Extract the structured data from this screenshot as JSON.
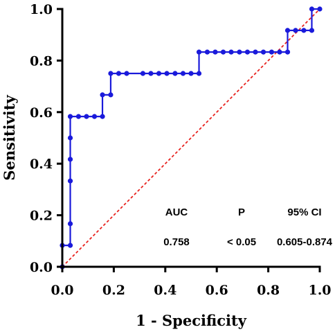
{
  "chart_data": {
    "type": "line",
    "xlabel": "1 - Specificity",
    "ylabel": "Sensitivity",
    "xlim": [
      0,
      1
    ],
    "ylim": [
      0,
      1
    ],
    "x_ticks": [
      "0.0",
      "0.2",
      "0.4",
      "0.6",
      "0.8",
      "1.0"
    ],
    "y_ticks": [
      "0.0",
      "0.2",
      "0.4",
      "0.6",
      "0.8",
      "1.0"
    ],
    "grid": false,
    "series": [
      {
        "color": "#1a1adb",
        "style": "step-with-markers",
        "points": [
          [
            0.0,
            0.0
          ],
          [
            0.0,
            0.083
          ],
          [
            0.031,
            0.083
          ],
          [
            0.031,
            0.167
          ],
          [
            0.031,
            0.333
          ],
          [
            0.031,
            0.417
          ],
          [
            0.031,
            0.5
          ],
          [
            0.031,
            0.583
          ],
          [
            0.063,
            0.583
          ],
          [
            0.094,
            0.583
          ],
          [
            0.125,
            0.583
          ],
          [
            0.156,
            0.583
          ],
          [
            0.156,
            0.667
          ],
          [
            0.188,
            0.667
          ],
          [
            0.188,
            0.75
          ],
          [
            0.219,
            0.75
          ],
          [
            0.25,
            0.75
          ],
          [
            0.313,
            0.75
          ],
          [
            0.344,
            0.75
          ],
          [
            0.375,
            0.75
          ],
          [
            0.406,
            0.75
          ],
          [
            0.438,
            0.75
          ],
          [
            0.469,
            0.75
          ],
          [
            0.5,
            0.75
          ],
          [
            0.531,
            0.75
          ],
          [
            0.531,
            0.833
          ],
          [
            0.563,
            0.833
          ],
          [
            0.594,
            0.833
          ],
          [
            0.625,
            0.833
          ],
          [
            0.656,
            0.833
          ],
          [
            0.688,
            0.833
          ],
          [
            0.719,
            0.833
          ],
          [
            0.75,
            0.833
          ],
          [
            0.781,
            0.833
          ],
          [
            0.813,
            0.833
          ],
          [
            0.844,
            0.833
          ],
          [
            0.875,
            0.833
          ],
          [
            0.875,
            0.917
          ],
          [
            0.906,
            0.917
          ],
          [
            0.938,
            0.917
          ],
          [
            0.969,
            0.917
          ],
          [
            0.969,
            1.0
          ],
          [
            1.0,
            1.0
          ]
        ]
      },
      {
        "color": "#e8231f",
        "style": "dashed",
        "points": [
          [
            0,
            0
          ],
          [
            1,
            1
          ]
        ]
      }
    ],
    "annotations": {
      "headers": [
        "AUC",
        "P",
        "95% CI"
      ],
      "values": [
        "0.758",
        "˂ 0.05",
        "0.605-0.874"
      ]
    }
  }
}
